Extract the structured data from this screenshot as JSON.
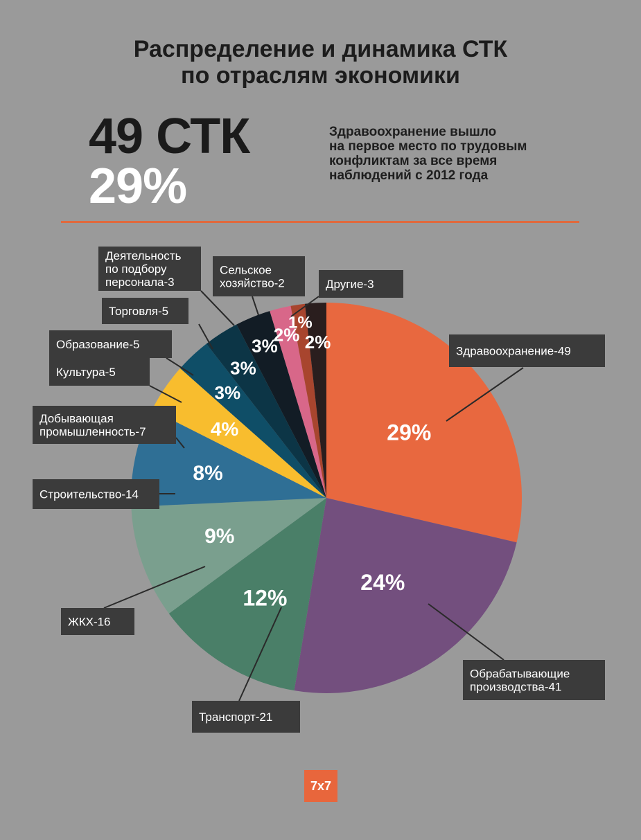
{
  "title_lines": [
    "Распределение и динамика СТК",
    "по отраслям экономики"
  ],
  "highlight": {
    "count": "49 СТК",
    "percent": "29%",
    "note_lines": [
      "Здравоохранение вышло",
      "на первое место по трудовым",
      "конфликтам за все время",
      "наблюдений с 2012 года"
    ]
  },
  "logo": "7x7",
  "chart_data": {
    "type": "pie",
    "slices": [
      {
        "label_lines": [
          "Здравоохранение-49"
        ],
        "value": 49,
        "percent_label": "29%",
        "color": "#e8683f"
      },
      {
        "label_lines": [
          "Обрабатывающие",
          "производства-41"
        ],
        "value": 41,
        "percent_label": "24%",
        "color": "#734f7e"
      },
      {
        "label_lines": [
          "Транспорт-21"
        ],
        "value": 21,
        "percent_label": "12%",
        "color": "#4a7f68"
      },
      {
        "label_lines": [
          "ЖКХ-16"
        ],
        "value": 16,
        "percent_label": "9%",
        "color": "#7a9f8e"
      },
      {
        "label_lines": [
          "Строительство-14"
        ],
        "value": 14,
        "percent_label": "8%",
        "color": "#2f6f95"
      },
      {
        "label_lines": [
          "Добывающая",
          "промышленность-7"
        ],
        "value": 7,
        "percent_label": "4%",
        "color": "#f8bd2e"
      },
      {
        "label_lines": [
          "Культура-5"
        ],
        "value": 5,
        "percent_label": "3%",
        "color": "#0f4e67"
      },
      {
        "label_lines": [
          "Образование-5"
        ],
        "value": 5,
        "percent_label": "3%",
        "color": "#0c3546"
      },
      {
        "label_lines": [
          "Торговля-5"
        ],
        "value": 5,
        "percent_label": "3%",
        "color": "#121c25"
      },
      {
        "label_lines": [
          "Деятельность",
          "по подбору",
          "персонала-3"
        ],
        "value": 3,
        "percent_label": "2%",
        "color": "#d86789"
      },
      {
        "label_lines": [
          "Сельское",
          "хозяйство-2"
        ],
        "value": 2,
        "percent_label": "1%",
        "color": "#a8452e"
      },
      {
        "label_lines": [
          "Другие-3"
        ],
        "value": 3,
        "percent_label": "2%",
        "color": "#2a1e1e"
      }
    ]
  }
}
